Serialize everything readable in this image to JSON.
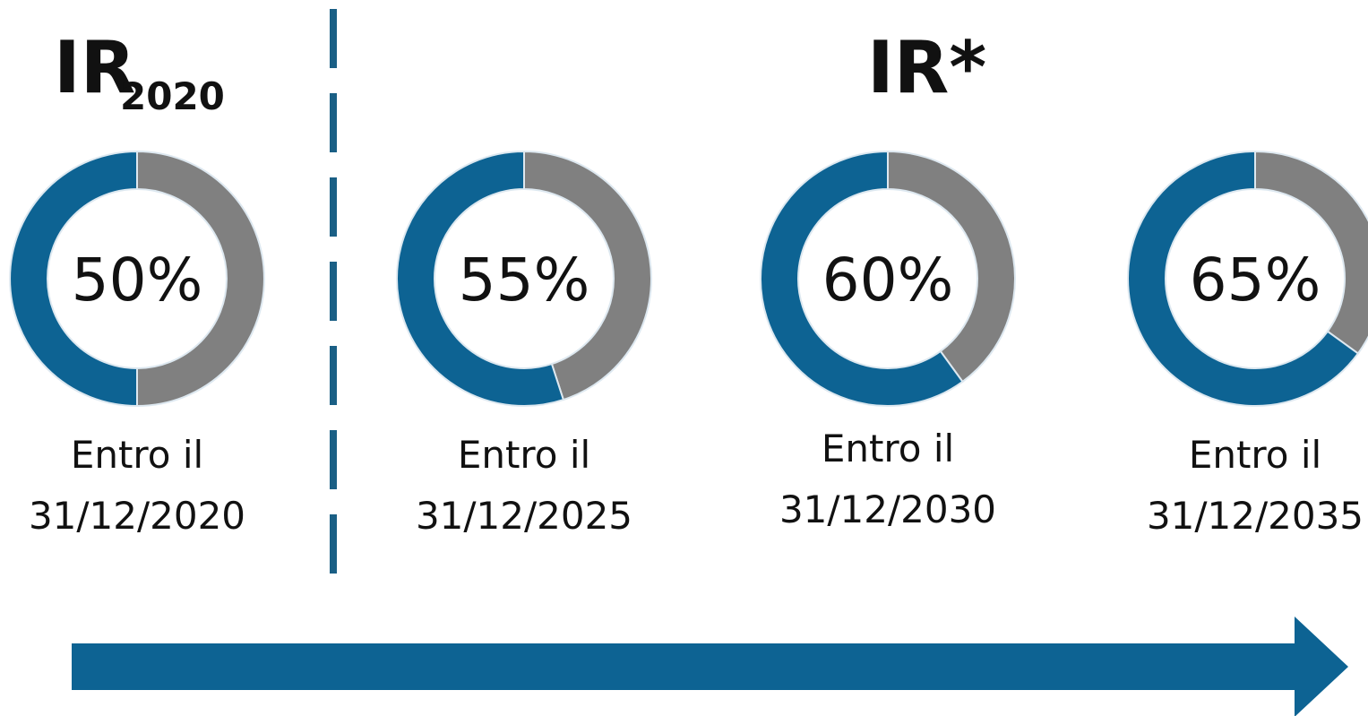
{
  "headings": {
    "left": {
      "text": "IR",
      "subscript": "2020"
    },
    "right": "IR*"
  },
  "chart_data": [
    {
      "type": "donut",
      "values": [
        50
      ],
      "value_labels": [
        "50%"
      ],
      "color": "#0d6393",
      "rest_color": "#808080",
      "caption": [
        "Entro il",
        "31/12/2020"
      ]
    },
    {
      "type": "donut",
      "values": [
        55
      ],
      "value_labels": [
        "55%"
      ],
      "color": "#0d6393",
      "rest_color": "#808080",
      "caption": [
        "Entro il",
        "31/12/2025"
      ]
    },
    {
      "type": "donut",
      "values": [
        60
      ],
      "value_labels": [
        "60%"
      ],
      "color": "#0d6393",
      "rest_color": "#808080",
      "caption": [
        "Entro il",
        "31/12/2030"
      ]
    },
    {
      "type": "donut",
      "values": [
        65
      ],
      "value_labels": [
        "65%"
      ],
      "color": "#0d6393",
      "rest_color": "#808080",
      "caption": [
        "Entro il",
        "31/12/2035"
      ]
    }
  ]
}
